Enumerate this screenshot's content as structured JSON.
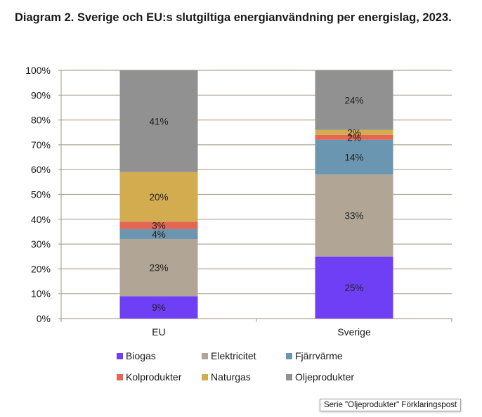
{
  "title": "Diagram 2. Sverige och EU:s slutgiltiga energianvändning per energislag, 2023.",
  "tooltip": "Serie \"Oljeprodukter\" Förklaringspost",
  "chart_data": {
    "type": "bar",
    "stacked": true,
    "title": "Diagram 2. Sverige och EU:s slutgiltiga energianvändning per energislag, 2023.",
    "xlabel": "",
    "ylabel": "",
    "categories": [
      "EU",
      "Sverige"
    ],
    "ylim": [
      0,
      100
    ],
    "yticks": [
      "0%",
      "10%",
      "20%",
      "30%",
      "40%",
      "50%",
      "60%",
      "70%",
      "80%",
      "90%",
      "100%"
    ],
    "grid": true,
    "legend_position": "bottom",
    "series": [
      {
        "name": "Biogas",
        "color": "#6f3ff5",
        "values": [
          9,
          25
        ],
        "labels": [
          "9%",
          "25%"
        ]
      },
      {
        "name": "Elektricitet",
        "color": "#b1a595",
        "values": [
          23,
          33
        ],
        "labels": [
          "23%",
          "33%"
        ]
      },
      {
        "name": "Fjärrvärme",
        "color": "#6b96b1",
        "values": [
          4,
          14
        ],
        "labels": [
          "4%",
          "14%"
        ]
      },
      {
        "name": "Kolproduktер",
        "color": "#e46655",
        "values": [
          3,
          2
        ],
        "labels": [
          "3%",
          "2%"
        ]
      },
      {
        "name": "Naturgas",
        "color": "#d4ac50",
        "values": [
          20,
          2
        ],
        "labels": [
          "20%",
          "2%"
        ]
      },
      {
        "name": "Oljeprodukter",
        "color": "#919191",
        "values": [
          41,
          24
        ],
        "labels": [
          "41%",
          "24%"
        ]
      }
    ]
  }
}
